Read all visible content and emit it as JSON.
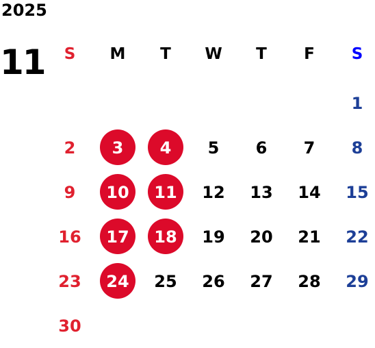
{
  "year": "2025",
  "month": "11",
  "weekdays": [
    "S",
    "M",
    "T",
    "W",
    "T",
    "F",
    "S"
  ],
  "weeks": [
    [
      "",
      "",
      "",
      "",
      "",
      "",
      "1"
    ],
    [
      "2",
      "3",
      "4",
      "5",
      "6",
      "7",
      "8"
    ],
    [
      "9",
      "10",
      "11",
      "12",
      "13",
      "14",
      "15"
    ],
    [
      "16",
      "17",
      "18",
      "19",
      "20",
      "21",
      "22"
    ],
    [
      "23",
      "24",
      "25",
      "26",
      "27",
      "28",
      "29"
    ],
    [
      "30",
      "",
      "",
      "",
      "",
      "",
      ""
    ]
  ],
  "highlighted_days": [
    "3",
    "4",
    "10",
    "11",
    "17",
    "18",
    "24"
  ],
  "colors": {
    "sunday": "#e0212f",
    "saturday": "#1d3f97",
    "saturday_header": "#0000ff",
    "highlight": "#dc0a2a"
  }
}
